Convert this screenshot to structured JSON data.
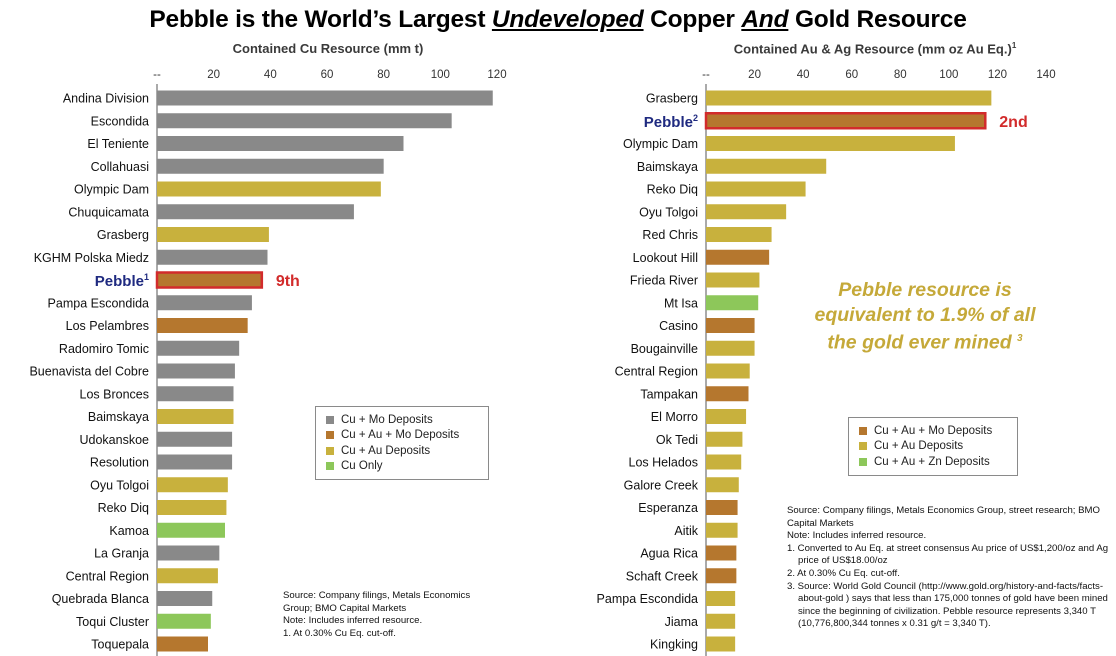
{
  "title": {
    "part1": "Pebble is the World’s Largest ",
    "underlined1": "Undeveloped",
    "part2": " Copper ",
    "underlined2": "And",
    "part3": " Gold Resource"
  },
  "colors": {
    "cu_mo": "#898989",
    "cu_au_mo": "#b5772e",
    "cu_au": "#c8b13d",
    "cu_only": "#8dc75a",
    "cu_au_zn": "#8dc75a",
    "highlight_border": "#d22b2b",
    "highlight_text": "#d22b2b",
    "pebble_label": "#1f2a80",
    "callout": "#c5a939"
  },
  "chart_data": [
    {
      "type": "bar",
      "orientation": "horizontal",
      "title": "Contained Cu Resource (mm t)",
      "xlim": [
        0,
        120
      ],
      "ticks": [
        "--",
        "20",
        "40",
        "60",
        "80",
        "100",
        "120"
      ],
      "tick_values": [
        0,
        20,
        40,
        60,
        80,
        100,
        120
      ],
      "highlight": {
        "category": "Pebble",
        "label_sup": "1",
        "annotation": "9th"
      },
      "legend": {
        "placement": "bottom-right",
        "items": [
          {
            "label": "Cu + Mo Deposits",
            "key": "cu_mo"
          },
          {
            "label": "Cu + Au + Mo Deposits",
            "key": "cu_au_mo"
          },
          {
            "label": "Cu + Au Deposits",
            "key": "cu_au"
          },
          {
            "label": "Cu Only",
            "key": "cu_only"
          }
        ]
      },
      "categories": [
        "Andina Division",
        "Escondida",
        "El Teniente",
        "Collahuasi",
        "Olympic Dam",
        "Chuquicamata",
        "Grasberg",
        "KGHM Polska Miedz",
        "Pebble",
        "Pampa Escondida",
        "Los Pelambres",
        "Radomiro Tomic",
        "Buenavista del Cobre",
        "Los Bronces",
        "Baimskaya",
        "Udokanskoe",
        "Resolution",
        "Oyu Tolgoi",
        "Reko Diq",
        "Kamoa",
        "La Granja",
        "Central Region",
        "Quebrada Blanca",
        "Toqui Cluster",
        "Toquepala"
      ],
      "values": [
        118.5,
        104,
        87,
        80,
        79,
        69.5,
        39.5,
        39,
        37,
        33.5,
        32,
        29,
        27.5,
        27,
        27,
        26.5,
        26.5,
        25,
        24.5,
        24,
        22,
        21.5,
        19.5,
        19,
        18
      ],
      "groups": [
        "cu_mo",
        "cu_mo",
        "cu_mo",
        "cu_mo",
        "cu_au",
        "cu_mo",
        "cu_au",
        "cu_mo",
        "cu_au_mo",
        "cu_mo",
        "cu_au_mo",
        "cu_mo",
        "cu_mo",
        "cu_mo",
        "cu_au",
        "cu_mo",
        "cu_mo",
        "cu_au",
        "cu_au",
        "cu_only",
        "cu_mo",
        "cu_au",
        "cu_mo",
        "cu_only",
        "cu_au_mo"
      ]
    },
    {
      "type": "bar",
      "orientation": "horizontal",
      "title": "Contained Au & Ag Resource (mm oz Au Eq.)",
      "title_sup": "1",
      "xlim": [
        0,
        140
      ],
      "ticks": [
        "--",
        "20",
        "40",
        "60",
        "80",
        "100",
        "120",
        "140"
      ],
      "tick_values": [
        0,
        20,
        40,
        60,
        80,
        100,
        120,
        140
      ],
      "highlight": {
        "category": "Pebble",
        "label_sup": "2",
        "annotation": "2nd"
      },
      "legend": {
        "placement": "bottom-right",
        "items": [
          {
            "label": "Cu + Au + Mo Deposits",
            "key": "cu_au_mo"
          },
          {
            "label": "Cu + Au Deposits",
            "key": "cu_au"
          },
          {
            "label": "Cu + Au + Zn Deposits",
            "key": "cu_au_zn"
          }
        ]
      },
      "categories": [
        "Grasberg",
        "Pebble",
        "Olympic Dam",
        "Baimskaya",
        "Reko Diq",
        "Oyu Tolgoi",
        "Red Chris",
        "Lookout Hill",
        "Frieda River",
        "Mt Isa",
        "Casino",
        "Bougainville",
        "Central Region",
        "Tampakan",
        "El Morro",
        "Ok Tedi",
        "Los Helados",
        "Galore Creek",
        "Esperanza",
        "Aitik",
        "Agua Rica",
        "Schaft Creek",
        "Pampa Escondida",
        "Jiama",
        "Kingking"
      ],
      "values": [
        117.5,
        115,
        102.5,
        49.5,
        41,
        33,
        27,
        26,
        22,
        21.5,
        20,
        20,
        18,
        17.5,
        16.5,
        15,
        14.5,
        13.5,
        13,
        13,
        12.5,
        12.5,
        12,
        12,
        12
      ],
      "groups": [
        "cu_au",
        "cu_au_mo",
        "cu_au",
        "cu_au",
        "cu_au",
        "cu_au",
        "cu_au",
        "cu_au_mo",
        "cu_au",
        "cu_au_zn",
        "cu_au_mo",
        "cu_au",
        "cu_au",
        "cu_au_mo",
        "cu_au",
        "cu_au",
        "cu_au",
        "cu_au",
        "cu_au_mo",
        "cu_au",
        "cu_au_mo",
        "cu_au_mo",
        "cu_au",
        "cu_au",
        "cu_au"
      ]
    }
  ],
  "callout": {
    "line1": "Pebble resource is",
    "line2": "equivalent to 1.9% of all",
    "line3": "the gold ever mined",
    "sup": "3"
  },
  "left_notes": {
    "source": "Source: Company filings, Metals Economics Group; BMO Capital Markets",
    "note": "Note: Includes inferred resource.",
    "n1": "1. At 0.30% Cu Eq. cut-off."
  },
  "right_notes": {
    "source": "Source: Company filings, Metals Economics Group, street research; BMO Capital Markets",
    "note": "Note: Includes inferred resource.",
    "n1": "1. Converted to Au Eq. at street consensus Au price of US$1,200/oz and Ag price of US$18.00/oz",
    "n2": "2. At 0.30% Cu Eq. cut-off.",
    "n3": "3. Source: World Gold Council (http://www.gold.org/history-and-facts/facts-about-gold ) says that less than 175,000 tonnes of gold have been mined since the beginning of civilization. Pebble resource represents 3,340 T (10,776,800,344 tonnes x 0.31 g/t = 3,340 T)."
  }
}
